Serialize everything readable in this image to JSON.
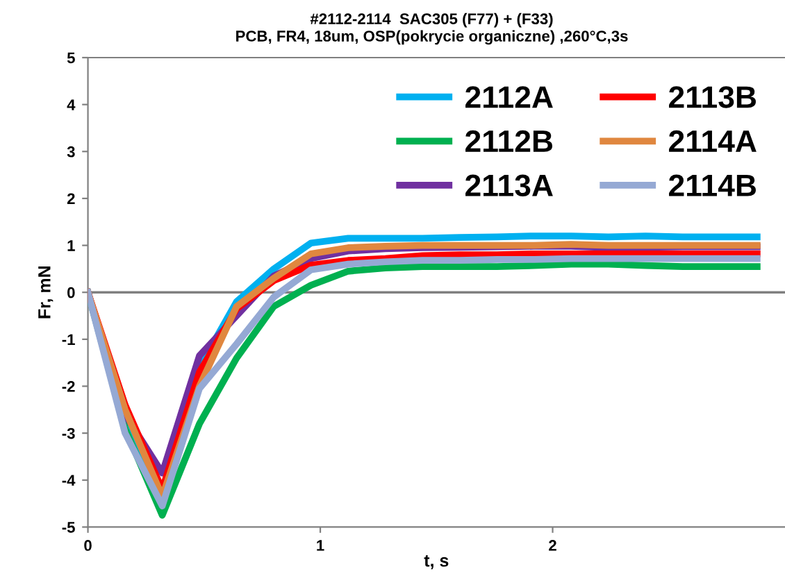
{
  "chart_data": {
    "type": "line",
    "title": "#2112-2114  SAC305 (F77) + (F33)",
    "subtitle": "PCB, FR4, 18um, OSP(pokrycie organiczne) ,260°C,3s",
    "xlabel": "t, s",
    "ylabel": "Fr, mN",
    "x": [
      0,
      0.16,
      0.32,
      0.48,
      0.64,
      0.8,
      0.96,
      1.12,
      1.28,
      1.44,
      1.6,
      1.76,
      1.92,
      2.08,
      2.24,
      2.4,
      2.56,
      2.72,
      2.88
    ],
    "series": [
      {
        "name": "2112A",
        "color": "#00b0f0",
        "values": [
          0,
          -2.8,
          -4.5,
          -1.6,
          -0.2,
          0.5,
          1.05,
          1.15,
          1.15,
          1.15,
          1.17,
          1.18,
          1.2,
          1.2,
          1.18,
          1.2,
          1.18,
          1.18,
          1.18
        ]
      },
      {
        "name": "2112B",
        "color": "#00b050",
        "values": [
          0,
          -2.9,
          -4.75,
          -2.8,
          -1.4,
          -0.3,
          0.15,
          0.45,
          0.52,
          0.55,
          0.55,
          0.55,
          0.57,
          0.6,
          0.6,
          0.57,
          0.55,
          0.55,
          0.55
        ]
      },
      {
        "name": "2113A",
        "color": "#7030a0",
        "values": [
          0,
          -2.6,
          -3.85,
          -1.35,
          -0.5,
          0.35,
          0.72,
          0.88,
          0.93,
          0.95,
          0.96,
          0.97,
          0.98,
          0.98,
          0.95,
          0.96,
          0.97,
          0.97,
          0.97
        ]
      },
      {
        "name": "2113B",
        "color": "#ff0000",
        "values": [
          0,
          -2.4,
          -4.2,
          -1.7,
          -0.35,
          0.25,
          0.58,
          0.68,
          0.72,
          0.78,
          0.8,
          0.8,
          0.82,
          0.82,
          0.82,
          0.82,
          0.82,
          0.82,
          0.82
        ]
      },
      {
        "name": "2114A",
        "color": "#e0873f",
        "values": [
          0,
          -2.5,
          -4.35,
          -2.0,
          -0.3,
          0.3,
          0.82,
          0.95,
          0.98,
          1.0,
          1.0,
          1.0,
          1.0,
          1.02,
          1.0,
          1.0,
          1.0,
          1.0,
          1.0
        ]
      },
      {
        "name": "2114B",
        "color": "#95a9d4",
        "values": [
          0,
          -3.0,
          -4.55,
          -2.05,
          -1.1,
          -0.1,
          0.48,
          0.6,
          0.65,
          0.68,
          0.68,
          0.7,
          0.7,
          0.72,
          0.72,
          0.72,
          0.72,
          0.72,
          0.72
        ]
      }
    ],
    "xlim": [
      0,
      3
    ],
    "xticks": [
      0,
      1,
      2
    ],
    "ylim": [
      -5,
      5
    ],
    "yticks": [
      -5,
      -4,
      -3,
      -2,
      -1,
      0,
      1,
      2,
      3,
      4,
      5
    ],
    "ref_lines": [
      {
        "axis": "y",
        "value": 0,
        "color": "#808080"
      }
    ],
    "grid": false,
    "legend": "top right",
    "marker": "none",
    "line_style": "solid"
  }
}
